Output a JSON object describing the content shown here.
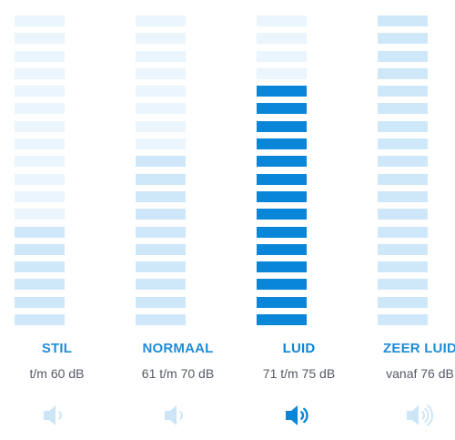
{
  "colors": {
    "bar_empty": "#eaf5fd",
    "bar_light": "#cfe8f9",
    "bar_full": "#0a86d8",
    "label_light": "#1f8dd6",
    "label_full": "#0a86d8",
    "icon_light": "#cde6f7",
    "icon_full": "#0a86d8"
  },
  "total_segments": 18,
  "levels": [
    {
      "label": "STIL",
      "range": "t/m 60 dB",
      "filled_segments": 6,
      "style": "light",
      "icon": "speaker-quiet-icon",
      "waves": 1
    },
    {
      "label": "NORMAAL",
      "range": "61 t/m 70 dB",
      "filled_segments": 10,
      "style": "light",
      "icon": "speaker-normal-icon",
      "waves": 1
    },
    {
      "label": "LUID",
      "range": "71 t/m 75 dB",
      "filled_segments": 14,
      "style": "full",
      "icon": "speaker-loud-icon",
      "waves": 2
    },
    {
      "label": "ZEER LUID",
      "range": "vanaf 76 dB",
      "filled_segments": 18,
      "style": "light",
      "icon": "speaker-very-loud-icon",
      "waves": 3
    }
  ]
}
